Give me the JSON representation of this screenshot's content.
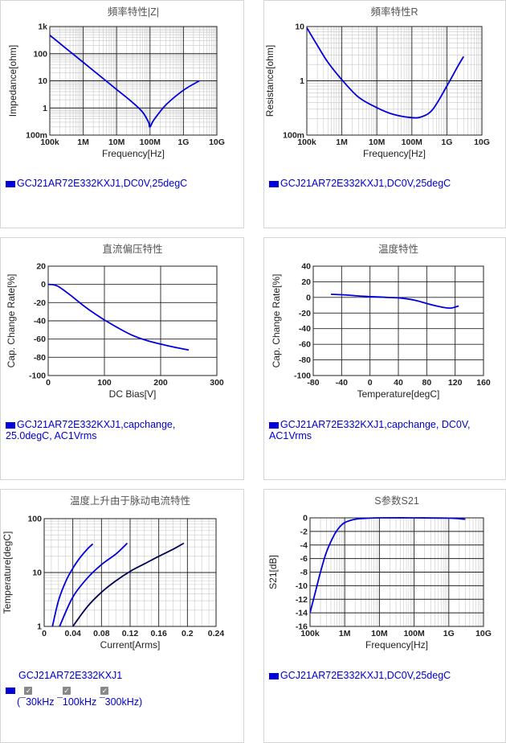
{
  "chart_data": [
    {
      "id": "c1",
      "type": "line",
      "title": "頻率特性|Z|",
      "xlabel": "Frequency[Hz]",
      "ylabel": "Impedance[ohm]",
      "xscale": "log",
      "yscale": "log",
      "xlim": [
        100000,
        10000000000
      ],
      "ylim": [
        0.1,
        1000
      ],
      "xticks": [
        {
          "v": 100000,
          "label": "100k"
        },
        {
          "v": 1000000,
          "label": "1M"
        },
        {
          "v": 10000000,
          "label": "10M"
        },
        {
          "v": 100000000,
          "label": "100M"
        },
        {
          "v": 1000000000,
          "label": "1G"
        },
        {
          "v": 10000000000,
          "label": "10G"
        }
      ],
      "yticks": [
        {
          "v": 1000,
          "label": "1k"
        },
        {
          "v": 100,
          "label": "100"
        },
        {
          "v": 10,
          "label": "10"
        },
        {
          "v": 1,
          "label": "1"
        },
        {
          "v": 0.1,
          "label": "100m"
        }
      ],
      "series": [
        {
          "name": "GCJ21AR72E332KXJ1,DC0V,25degC",
          "color": "#0000dd",
          "x": [
            100000,
            300000,
            1000000,
            3000000,
            10000000,
            30000000,
            60000000,
            90000000,
            100000000,
            130000000,
            300000000,
            1000000000,
            3000000000
          ],
          "y": [
            480,
            160,
            48,
            16,
            4.8,
            1.6,
            0.7,
            0.3,
            0.2,
            0.36,
            1.3,
            4.5,
            10
          ]
        }
      ],
      "legend": [
        "GCJ21AR72E332KXJ1,DC0V,25degC"
      ]
    },
    {
      "id": "c2",
      "type": "line",
      "title": "頻率特性R",
      "xlabel": "Frequency[Hz]",
      "ylabel": "Resistance[ohm]",
      "xscale": "log",
      "yscale": "log",
      "xlim": [
        100000,
        10000000000
      ],
      "ylim": [
        0.1,
        10
      ],
      "xticks": [
        {
          "v": 100000,
          "label": "100k"
        },
        {
          "v": 1000000,
          "label": "1M"
        },
        {
          "v": 10000000,
          "label": "10M"
        },
        {
          "v": 100000000,
          "label": "100M"
        },
        {
          "v": 1000000000,
          "label": "1G"
        },
        {
          "v": 10000000000,
          "label": "10G"
        }
      ],
      "yticks": [
        {
          "v": 10,
          "label": "10"
        },
        {
          "v": 1,
          "label": "1"
        },
        {
          "v": 0.1,
          "label": "100m"
        }
      ],
      "series": [
        {
          "name": "GCJ21AR72E332KXJ1,DC0V,25degC",
          "color": "#0000dd",
          "x": [
            100000,
            200000,
            400000,
            1000000,
            3000000,
            10000000,
            30000000,
            100000000,
            200000000,
            400000000,
            1000000000,
            2000000000,
            3000000000
          ],
          "y": [
            9.5,
            4.5,
            2.2,
            1.05,
            0.5,
            0.32,
            0.24,
            0.21,
            0.22,
            0.3,
            0.8,
            1.8,
            2.8
          ]
        }
      ],
      "legend": [
        "GCJ21AR72E332KXJ1,DC0V,25degC"
      ]
    },
    {
      "id": "c3",
      "type": "line",
      "title": "直流偏压特性",
      "xlabel": "DC Bias[V]",
      "ylabel": "Cap. Change Rate[%]",
      "xlim": [
        0,
        300
      ],
      "ylim": [
        -100,
        20
      ],
      "xticks": [
        {
          "v": 0,
          "label": "0"
        },
        {
          "v": 100,
          "label": "100"
        },
        {
          "v": 200,
          "label": "200"
        },
        {
          "v": 300,
          "label": "300"
        }
      ],
      "yticks": [
        {
          "v": 20,
          "label": "20"
        },
        {
          "v": 0,
          "label": "0"
        },
        {
          "v": -20,
          "label": "-20"
        },
        {
          "v": -40,
          "label": "-40"
        },
        {
          "v": -60,
          "label": "-60"
        },
        {
          "v": -80,
          "label": "-80"
        },
        {
          "v": -100,
          "label": "-100"
        }
      ],
      "series": [
        {
          "name": "GCJ21AR72E332KXJ1,capchange, 25.0degC, AC1Vrms",
          "color": "#0000dd",
          "x": [
            0,
            10,
            20,
            40,
            60,
            80,
            100,
            125,
            150,
            175,
            200,
            225,
            250
          ],
          "y": [
            0,
            -0.5,
            -3,
            -12,
            -22,
            -31,
            -39,
            -48,
            -56,
            -61.5,
            -65.5,
            -69,
            -72
          ]
        }
      ],
      "legend": [
        "GCJ21AR72E332KXJ1,capchange, 25.0degC, AC1Vrms"
      ]
    },
    {
      "id": "c4",
      "type": "line",
      "title": "温度特性",
      "xlabel": "Temperature[degC]",
      "ylabel": "Cap. Change Rate[%]",
      "xlim": [
        -80,
        160
      ],
      "ylim": [
        -100,
        40
      ],
      "xticks": [
        {
          "v": -80,
          "label": "-80"
        },
        {
          "v": -40,
          "label": "-40"
        },
        {
          "v": 0,
          "label": "0"
        },
        {
          "v": 40,
          "label": "40"
        },
        {
          "v": 80,
          "label": "80"
        },
        {
          "v": 120,
          "label": "120"
        },
        {
          "v": 160,
          "label": "160"
        }
      ],
      "yticks": [
        {
          "v": 40,
          "label": "40"
        },
        {
          "v": 20,
          "label": "20"
        },
        {
          "v": 0,
          "label": "0"
        },
        {
          "v": -20,
          "label": "-20"
        },
        {
          "v": -40,
          "label": "-40"
        },
        {
          "v": -60,
          "label": "-60"
        },
        {
          "v": -80,
          "label": "-80"
        },
        {
          "v": -100,
          "label": "-100"
        }
      ],
      "series": [
        {
          "name": "GCJ21AR72E332KXJ1,capchange, DC0V, AC1Vrms",
          "color": "#0000dd",
          "x": [
            -55,
            -40,
            -25,
            -10,
            0,
            25,
            45,
            65,
            85,
            105,
            115,
            125
          ],
          "y": [
            4,
            3.5,
            2.5,
            1.5,
            1,
            0,
            -1,
            -4,
            -9,
            -13,
            -13.5,
            -11
          ]
        }
      ],
      "legend": [
        "GCJ21AR72E332KXJ1,capchange, DC0V, AC1Vrms"
      ]
    },
    {
      "id": "c5",
      "type": "line",
      "title": "温度上升由于脉动电流特性",
      "xlabel": "Current[Arms]",
      "ylabel": "Temperature[degC]",
      "yscale": "log",
      "xlim": [
        0,
        0.24
      ],
      "ylim": [
        1,
        100
      ],
      "xticks": [
        {
          "v": 0,
          "label": "0"
        },
        {
          "v": 0.04,
          "label": "0.04"
        },
        {
          "v": 0.08,
          "label": "0.08"
        },
        {
          "v": 0.12,
          "label": "0.12"
        },
        {
          "v": 0.16,
          "label": "0.16"
        },
        {
          "v": 0.2,
          "label": "0.2"
        },
        {
          "v": 0.24,
          "label": "0.24"
        }
      ],
      "yticks": [
        {
          "v": 100,
          "label": "100"
        },
        {
          "v": 10,
          "label": "10"
        },
        {
          "v": 1,
          "label": "1"
        }
      ],
      "series": [
        {
          "name": "30kHz",
          "color": "#0000dd",
          "x": [
            0.0115,
            0.02,
            0.03,
            0.04,
            0.05,
            0.06,
            0.068
          ],
          "y": [
            1,
            3,
            6.8,
            12,
            18.8,
            27,
            34
          ]
        },
        {
          "name": "100kHz",
          "color": "#0000dd",
          "x": [
            0.0215,
            0.04,
            0.06,
            0.08,
            0.1,
            0.116
          ],
          "y": [
            1,
            3.5,
            7.8,
            14,
            22,
            35
          ]
        },
        {
          "name": "300kHz",
          "color": "#000055",
          "x": [
            0.04,
            0.06,
            0.08,
            0.1,
            0.12,
            0.14,
            0.16,
            0.18,
            0.195
          ],
          "y": [
            1,
            2.3,
            4.3,
            7,
            10.5,
            14.5,
            20,
            27,
            35
          ]
        }
      ],
      "legend": [
        "30kHz",
        "100kHz",
        "300kHz"
      ],
      "legend_part": "GCJ21AR72E332KXJ1"
    },
    {
      "id": "c6",
      "type": "line",
      "title": "S参数S21",
      "xlabel": "Frequency[Hz]",
      "ylabel": "S21[dB]",
      "xscale": "log",
      "xlim": [
        100000,
        10000000000
      ],
      "ylim": [
        -16,
        0
      ],
      "xticks": [
        {
          "v": 100000,
          "label": "100k"
        },
        {
          "v": 1000000,
          "label": "1M"
        },
        {
          "v": 10000000,
          "label": "10M"
        },
        {
          "v": 100000000,
          "label": "100M"
        },
        {
          "v": 1000000000,
          "label": "1G"
        },
        {
          "v": 10000000000,
          "label": "10G"
        }
      ],
      "yticks": [
        {
          "v": 0,
          "label": "0"
        },
        {
          "v": -2,
          "label": "-2"
        },
        {
          "v": -4,
          "label": "-4"
        },
        {
          "v": -6,
          "label": "-6"
        },
        {
          "v": -8,
          "label": "-8"
        },
        {
          "v": -10,
          "label": "-10"
        },
        {
          "v": -12,
          "label": "-12"
        },
        {
          "v": -14,
          "label": "-14"
        },
        {
          "v": -16,
          "label": "-16"
        }
      ],
      "series": [
        {
          "name": "GCJ21AR72E332KXJ1,DC0V,25degC",
          "color": "#0000dd",
          "x": [
            100000,
            150000,
            200000,
            300000,
            500000,
            700000,
            1000000,
            2000000,
            5000000,
            10000000,
            100000000,
            1000000000,
            3000000000
          ],
          "y": [
            -14,
            -10.5,
            -8,
            -5,
            -2.5,
            -1.4,
            -0.7,
            -0.2,
            -0.05,
            0,
            0,
            -0.05,
            -0.2
          ]
        }
      ],
      "legend": [
        "GCJ21AR72E332KXJ1,DC0V,25degC"
      ]
    }
  ],
  "legend5": {
    "part": "GCJ21AR72E332KXJ1",
    "check": "✓",
    "freqs_line": "(¯30kHz ¯100kHz ¯300kHz)"
  }
}
